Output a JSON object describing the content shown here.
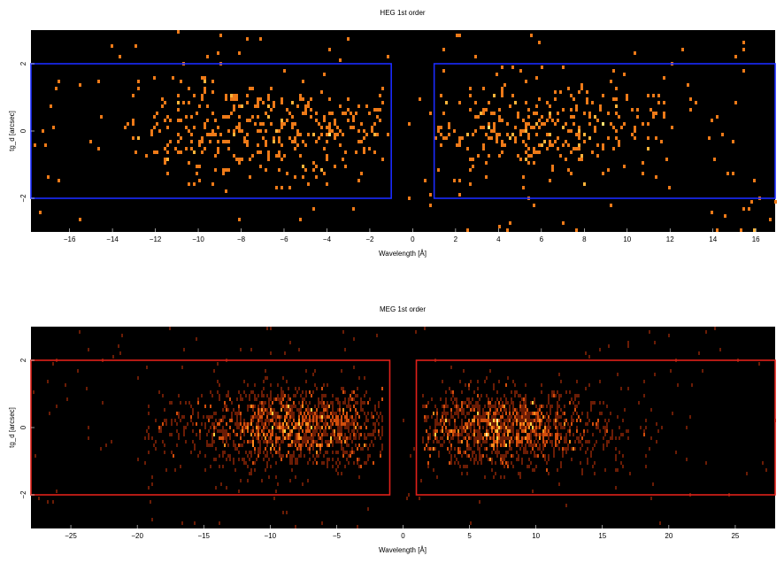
{
  "chart_data": [
    {
      "type": "heatmap",
      "title": "HEG 1st order",
      "xlabel": "Wavelength [Å]",
      "ylabel": "tg_d [arcsec]",
      "xlim": [
        -17.8,
        16.9
      ],
      "ylim": [
        -3.0,
        3.0
      ],
      "xticks": [
        -16,
        -14,
        -12,
        -10,
        -8,
        -6,
        -4,
        -2,
        0,
        2,
        4,
        6,
        8,
        10,
        12,
        14,
        16
      ],
      "yticks": [
        -2,
        0,
        2
      ],
      "background": "#000000",
      "colormap": [
        "#8a2a05",
        "#ee7a18",
        "#ffb43a",
        "#ffe070"
      ],
      "regions": [
        {
          "x": [
            -17.8,
            -1.0
          ],
          "y": [
            -2.0,
            2.0
          ],
          "color": "#1a2bff"
        },
        {
          "x": [
            1.0,
            16.9
          ],
          "y": [
            -2.0,
            2.0
          ],
          "color": "#1a2bff"
        }
      ],
      "clusters": [
        {
          "x_range": [
            -13.5,
            -1.0
          ],
          "center": -7.0,
          "width": 3.6,
          "y_sigma": 0.75,
          "counts": 340
        },
        {
          "x_range": [
            1.0,
            15.5
          ],
          "center": 6.0,
          "width": 3.4,
          "y_sigma": 0.7,
          "counts": 300
        }
      ],
      "scatter_counts": 140
    },
    {
      "type": "heatmap",
      "title": "MEG 1st order",
      "xlabel": "Wavelength [Å]",
      "ylabel": "tg_d [arcsec]",
      "xlim": [
        -28.0,
        28.0
      ],
      "ylim": [
        -3.0,
        3.0
      ],
      "xticks": [
        -25,
        -20,
        -15,
        -10,
        -5,
        0,
        5,
        10,
        15,
        20,
        25
      ],
      "yticks": [
        -2,
        0,
        2
      ],
      "background": "#000000",
      "colormap": [
        "#6b1c05",
        "#d24e0c",
        "#ff8c1c",
        "#ffd040",
        "#fff8a0"
      ],
      "regions": [
        {
          "x": [
            -28.0,
            -1.0
          ],
          "y": [
            -2.0,
            2.0
          ],
          "color": "#e0201a"
        },
        {
          "x": [
            1.0,
            28.0
          ],
          "y": [
            -2.0,
            2.0
          ],
          "color": "#e0201a"
        }
      ],
      "clusters": [
        {
          "x_range": [
            -19.5,
            -1.5
          ],
          "center": -8.0,
          "width": 4.2,
          "y_sigma": 0.6,
          "counts": 1400
        },
        {
          "x_range": [
            1.5,
            19.5
          ],
          "center": 7.5,
          "width": 3.8,
          "y_sigma": 0.55,
          "counts": 1300
        }
      ],
      "scatter_counts": 160
    }
  ]
}
